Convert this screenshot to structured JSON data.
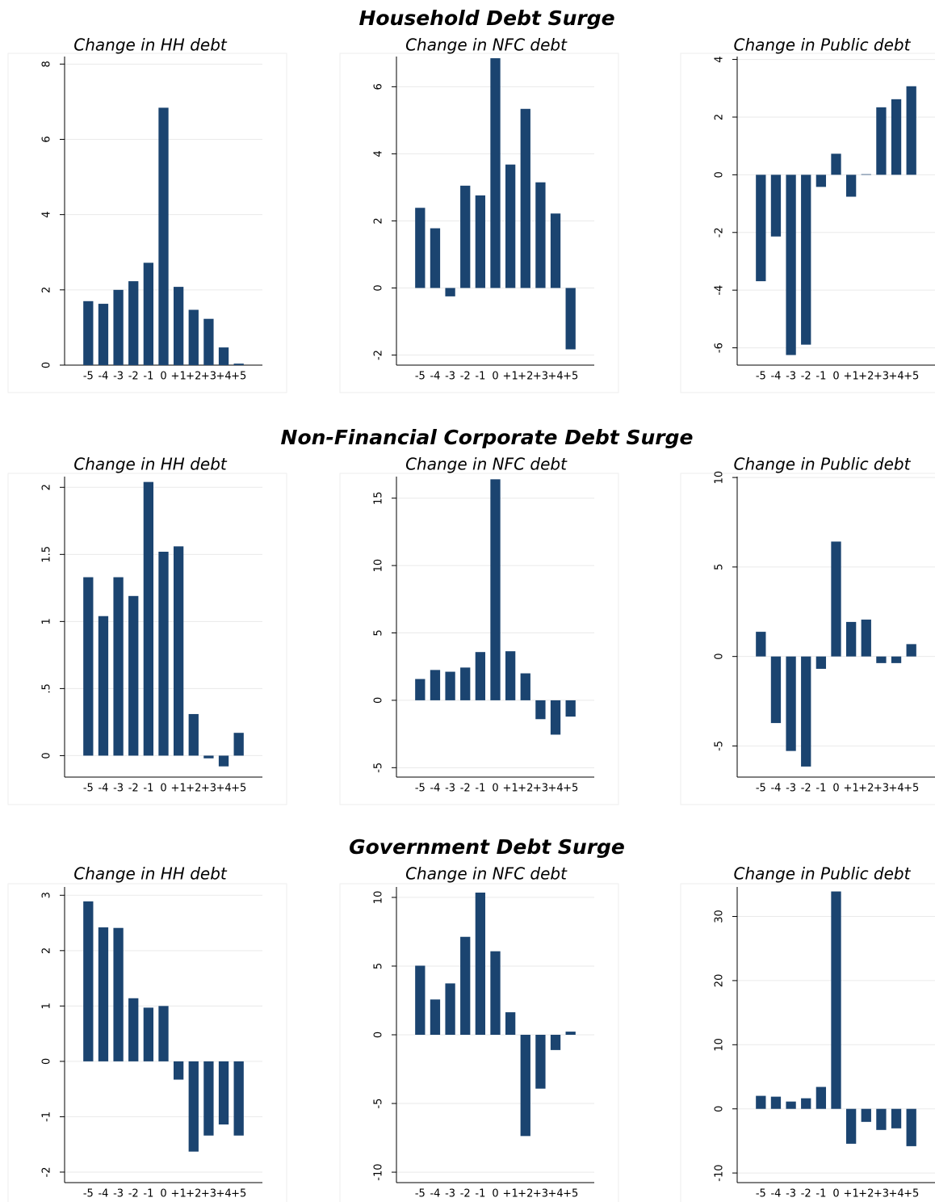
{
  "sections": [
    {
      "title": "Household Debt Surge"
    },
    {
      "title": "Non-Financial Corporate Debt Surge"
    },
    {
      "title": "Government Debt Surge"
    }
  ],
  "chart_data": [
    {
      "type": "bar",
      "title": "Change in HH debt",
      "color": "#1b4470",
      "grid": true,
      "categories": [
        "-5",
        "-4",
        "-3",
        "-2",
        "-1",
        "0",
        "+1",
        "+2",
        "+3",
        "+4",
        "+5"
      ],
      "values": [
        1.7,
        1.63,
        2.0,
        2.23,
        2.72,
        6.84,
        2.08,
        1.47,
        1.23,
        0.47,
        0.04
      ],
      "ylim": [
        0,
        8.2
      ],
      "yticks": [
        0,
        2,
        4,
        6,
        8
      ]
    },
    {
      "type": "bar",
      "title": "Change in NFC debt",
      "color": "#1b4470",
      "grid": true,
      "categories": [
        "-5",
        "-4",
        "-3",
        "-2",
        "-1",
        "0",
        "+1",
        "+2",
        "+3",
        "+4",
        "+5"
      ],
      "values": [
        2.39,
        1.78,
        -0.25,
        3.05,
        2.76,
        6.85,
        3.68,
        5.34,
        3.15,
        2.22,
        -1.83
      ],
      "ylim": [
        -2.3,
        6.9
      ],
      "yticks": [
        -2,
        0,
        2,
        4,
        6
      ]
    },
    {
      "type": "bar",
      "title": "Change in Public debt",
      "color": "#1b4470",
      "grid": true,
      "categories": [
        "-5",
        "-4",
        "-3",
        "-2",
        "-1",
        "0",
        "+1",
        "+2",
        "+3",
        "+4",
        "+5"
      ],
      "values": [
        -3.69,
        -2.14,
        -6.25,
        -5.89,
        -0.42,
        0.73,
        -0.76,
        0.02,
        2.34,
        2.62,
        3.07
      ],
      "ylim": [
        -6.6,
        4.1
      ],
      "yticks": [
        -6,
        -4,
        -2,
        0,
        2,
        4
      ]
    },
    {
      "type": "bar",
      "title": "Change in HH debt",
      "color": "#1b4470",
      "grid": true,
      "categories": [
        "-5",
        "-4",
        "-3",
        "-2",
        "-1",
        "0",
        "+1",
        "+2",
        "+3",
        "+4",
        "+5"
      ],
      "values": [
        1.33,
        1.04,
        1.33,
        1.19,
        2.04,
        1.52,
        1.56,
        0.31,
        -0.02,
        -0.08,
        0.17
      ],
      "ylim": [
        -0.16,
        2.08
      ],
      "yticks": [
        0,
        {
          "value": 0.5,
          "label": ".5"
        },
        1,
        1.5,
        2
      ]
    },
    {
      "type": "bar",
      "title": "Change in NFC debt",
      "color": "#1b4470",
      "grid": true,
      "categories": [
        "-5",
        "-4",
        "-3",
        "-2",
        "-1",
        "0",
        "+1",
        "+2",
        "+3",
        "+4",
        "+5"
      ],
      "values": [
        1.58,
        2.25,
        2.12,
        2.43,
        3.58,
        16.4,
        3.64,
        2.0,
        -1.4,
        -2.55,
        -1.21
      ],
      "ylim": [
        -5.7,
        16.6
      ],
      "yticks": [
        -5,
        0,
        5,
        10,
        15
      ]
    },
    {
      "type": "bar",
      "title": "Change in Public debt",
      "color": "#1b4470",
      "grid": true,
      "categories": [
        "-5",
        "-4",
        "-3",
        "-2",
        "-1",
        "0",
        "+1",
        "+2",
        "+3",
        "+4",
        "+5"
      ],
      "values": [
        1.38,
        -3.72,
        -5.28,
        -6.15,
        -0.69,
        6.42,
        1.93,
        2.06,
        -0.37,
        -0.37,
        0.69
      ],
      "ylim": [
        -6.74,
        10.05
      ],
      "yticks": [
        -5,
        0,
        5,
        10
      ]
    },
    {
      "type": "bar",
      "title": "Change in HH debt",
      "color": "#1b4470",
      "grid": true,
      "categories": [
        "-5",
        "-4",
        "-3",
        "-2",
        "-1",
        "0",
        "+1",
        "+2",
        "+3",
        "+4",
        "+5"
      ],
      "values": [
        2.89,
        2.42,
        2.41,
        1.14,
        0.97,
        1.0,
        -0.33,
        -1.63,
        -1.34,
        -1.14,
        -1.34
      ],
      "ylim": [
        -2.19,
        3.15
      ],
      "yticks": [
        -2,
        -1,
        0,
        1,
        2,
        3
      ]
    },
    {
      "type": "bar",
      "title": "Change in NFC debt",
      "color": "#1b4470",
      "grid": true,
      "categories": [
        "-5",
        "-4",
        "-3",
        "-2",
        "-1",
        "0",
        "+1",
        "+2",
        "+3",
        "+4",
        "+5"
      ],
      "values": [
        5.03,
        2.57,
        3.74,
        7.13,
        10.35,
        6.08,
        1.64,
        -7.37,
        -3.92,
        -1.11,
        0.23
      ],
      "ylim": [
        -10.76,
        10.76
      ],
      "yticks": [
        -10,
        -5,
        0,
        5,
        10
      ]
    },
    {
      "type": "bar",
      "title": "Change in Public debt",
      "color": "#1b4470",
      "grid": true,
      "categories": [
        "-5",
        "-4",
        "-3",
        "-2",
        "-1",
        "0",
        "+1",
        "+2",
        "+3",
        "+4",
        "+5"
      ],
      "values": [
        2.03,
        1.9,
        1.14,
        1.65,
        3.42,
        33.9,
        -5.44,
        -2.03,
        -3.29,
        -3.04,
        -5.82
      ],
      "ylim": [
        -11.5,
        34.6
      ],
      "yticks": [
        -10,
        0,
        10,
        20,
        30
      ]
    }
  ]
}
